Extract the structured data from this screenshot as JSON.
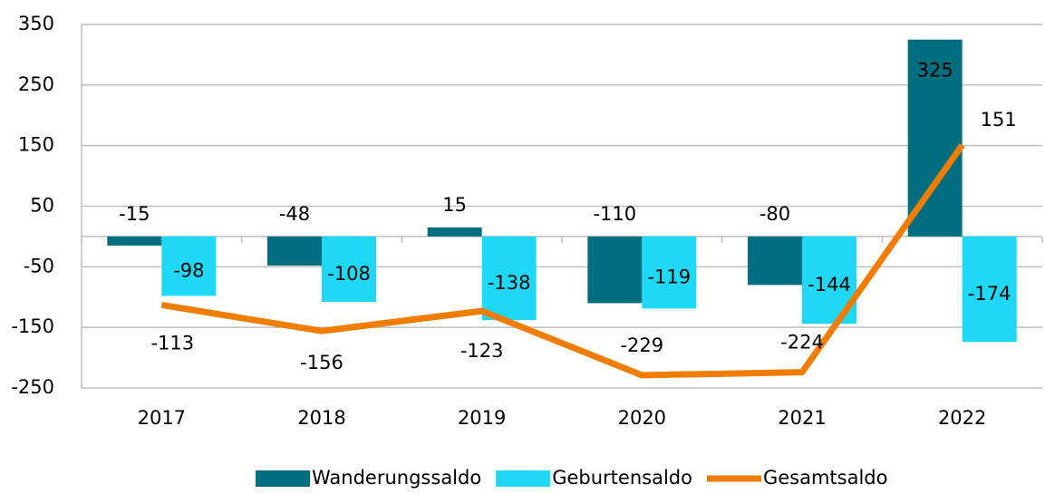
{
  "chart_data": {
    "type": "bar_line",
    "categories": [
      "2017",
      "2018",
      "2019",
      "2020",
      "2021",
      "2022"
    ],
    "series": [
      {
        "name": "Wanderungssaldo",
        "type": "bar",
        "color": "#006e7f",
        "values": [
          -15,
          -48,
          15,
          -110,
          -80,
          325
        ]
      },
      {
        "name": "Geburtensaldo",
        "type": "bar",
        "color": "#1fd8f5",
        "values": [
          -98,
          -108,
          -138,
          -119,
          -144,
          -174
        ]
      },
      {
        "name": "Gesamtsaldo",
        "type": "line",
        "color": "#f07d00",
        "values": [
          -113,
          -156,
          -123,
          -229,
          -224,
          151
        ]
      }
    ],
    "ylim": [
      -250,
      350
    ],
    "yticks": [
      -250,
      -150,
      -50,
      50,
      150,
      250,
      350
    ],
    "grid": true,
    "legend": "bottom"
  }
}
